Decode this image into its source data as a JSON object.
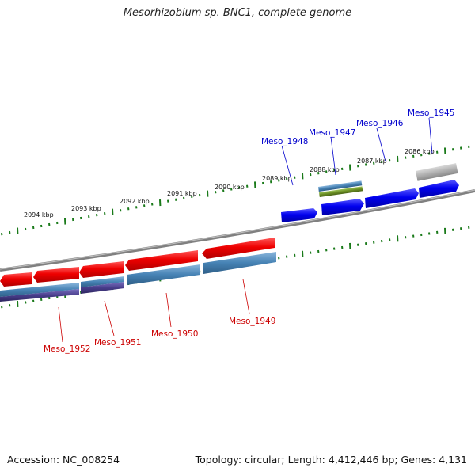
{
  "title": "Mesorhizobium sp. BNC1, complete genome",
  "footer": {
    "accession": "Accession: NC_008254",
    "topology": "Topology: circular; Length: 4,412,446 bp; Genes: 4,131"
  },
  "ticks": {
    "upper": [
      "2094 kbp",
      "2093 kbp",
      "2092 kbp",
      "2091 kbp",
      "2090 kbp",
      "2089 kbp",
      "2088 kbp",
      "2087 kbp",
      "2086 kbp"
    ]
  },
  "genes": {
    "forward": [
      {
        "label": "Meso_1948",
        "color": "#0000cc"
      },
      {
        "label": "Meso_1947",
        "color": "#0000cc"
      },
      {
        "label": "Meso_1946",
        "color": "#0000cc"
      },
      {
        "label": "Meso_1945",
        "color": "#0000cc"
      }
    ],
    "reverse": [
      {
        "label": "Meso_1952",
        "color": "#cc0000"
      },
      {
        "label": "Meso_1951",
        "color": "#cc0000"
      },
      {
        "label": "Meso_1950",
        "color": "#cc0000"
      },
      {
        "label": "Meso_1949",
        "color": "#cc0000"
      }
    ]
  },
  "colors": {
    "forward_gene": "#0000ee",
    "reverse_gene": "#ee0000",
    "cds_blue": "#4682b4",
    "cds_purple": "#483d8b",
    "cds_olive": "#6b8e23",
    "pseudo_gray": "#b0b0b0",
    "backbone": "#808080",
    "ticks": "#1a7a1a"
  }
}
